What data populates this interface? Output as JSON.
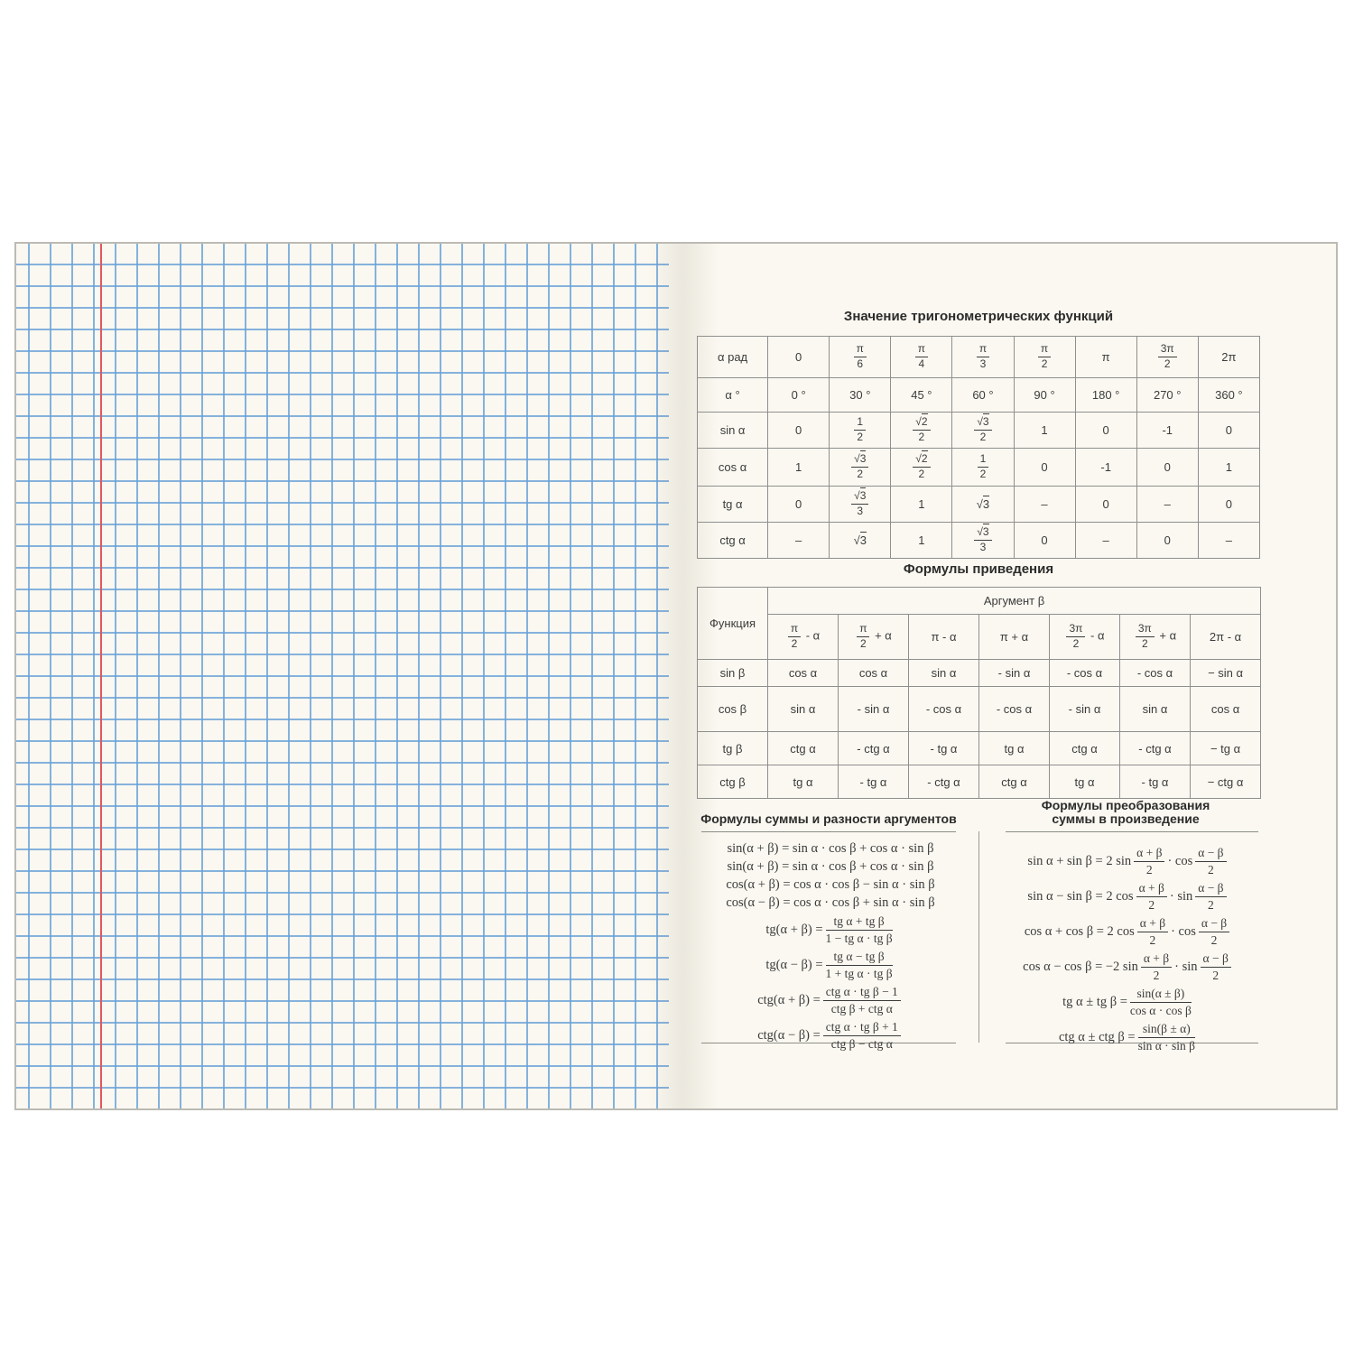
{
  "colors": {
    "paper": "#faf8f0",
    "grid_blue": "#68a0d8",
    "margin_red": "#e05760",
    "table_border": "#8f8f8f",
    "text": "#3a3a3a"
  },
  "table1": {
    "title": "Значение тригонометрических функций",
    "rows": [
      [
        "α рад",
        "0",
        {
          "n": "π",
          "d": "6"
        },
        {
          "n": "π",
          "d": "4"
        },
        {
          "n": "π",
          "d": "3"
        },
        {
          "n": "π",
          "d": "2"
        },
        "π",
        {
          "n": "3π",
          "d": "2"
        },
        "2π"
      ],
      [
        "α °",
        "0 °",
        "30 °",
        "45 °",
        "60 °",
        "90 °",
        "180 °",
        "270 °",
        "360 °"
      ],
      [
        "sin α",
        "0",
        {
          "n": "1",
          "d": "2"
        },
        {
          "n": "√{2}",
          "d": "2"
        },
        {
          "n": "√{3}",
          "d": "2"
        },
        "1",
        "0",
        "-1",
        "0"
      ],
      [
        "cos α",
        "1",
        {
          "n": "√{3}",
          "d": "2"
        },
        {
          "n": "√{2}",
          "d": "2"
        },
        {
          "n": "1",
          "d": "2"
        },
        "0",
        "-1",
        "0",
        "1"
      ],
      [
        "tg α",
        "0",
        {
          "n": "√{3}",
          "d": "3"
        },
        "1",
        "√{3}",
        "–",
        "0",
        "–",
        "0"
      ],
      [
        "ctg α",
        "–",
        "√{3}",
        "1",
        {
          "n": "√{3}",
          "d": "3"
        },
        "0",
        "–",
        "0",
        "–"
      ]
    ]
  },
  "table2": {
    "title": "Формулы приведения",
    "func_label": "Функция",
    "arg_label": "Аргумент β",
    "arg_headers": [
      [
        {
          "n": "π",
          "d": "2"
        },
        " - α"
      ],
      [
        {
          "n": "π",
          "d": "2"
        },
        " + α"
      ],
      "π - α",
      "π + α",
      [
        {
          "n": "3π",
          "d": "2"
        },
        " - α"
      ],
      [
        {
          "n": "3π",
          "d": "2"
        },
        " + α"
      ],
      "2π - α"
    ],
    "rows": [
      [
        "sin β",
        "cos α",
        "cos α",
        "sin α",
        "- sin α",
        "- cos α",
        "- cos α",
        "− sin α"
      ],
      [
        "cos β",
        "sin α",
        "- sin α",
        "- cos α",
        "- cos α",
        "- sin α",
        "sin α",
        "cos α"
      ],
      [
        "tg β",
        "ctg α",
        "- ctg α",
        "- tg α",
        "tg α",
        "ctg α",
        "- ctg α",
        "− tg α"
      ],
      [
        "ctg β",
        "tg α",
        "- tg α",
        "- ctg α",
        "ctg α",
        "tg α",
        "- tg α",
        "− ctg α"
      ]
    ]
  },
  "sum_section": {
    "title": "Формулы суммы и разности аргументов",
    "formulas": [
      [
        "sin(α + β) = sin α · cos β + cos α · sin β"
      ],
      [
        "sin(α + β) = sin α · cos β + cos α · sin β"
      ],
      [
        "cos(α + β) = cos α · cos β − sin α · sin β"
      ],
      [
        "cos(α − β) = cos α · cos β + sin α · sin β"
      ],
      [
        "tg(α + β) = ",
        {
          "n": "tg α + tg β",
          "d": "1 − tg α · tg β"
        }
      ],
      [
        "tg(α − β) = ",
        {
          "n": "tg α − tg β",
          "d": "1 + tg α · tg β"
        }
      ],
      [
        "ctg(α + β) = ",
        {
          "n": "ctg α · tg β − 1",
          "d": "ctg β + ctg α"
        }
      ],
      [
        "ctg(α − β) = ",
        {
          "n": "ctg α · tg β + 1",
          "d": "ctg β − ctg α"
        }
      ]
    ]
  },
  "prod_section": {
    "title_line1": "Формулы преобразования",
    "title_line2": "суммы в произведение",
    "formulas": [
      [
        "sin α + sin β = 2 sin ",
        {
          "n": "α + β",
          "d": "2"
        },
        " · cos ",
        {
          "n": "α − β",
          "d": "2"
        }
      ],
      [
        "sin α − sin β = 2 cos ",
        {
          "n": "α + β",
          "d": "2"
        },
        " · sin ",
        {
          "n": "α − β",
          "d": "2"
        }
      ],
      [
        "cos α + cos β = 2 cos ",
        {
          "n": "α + β",
          "d": "2"
        },
        " · cos ",
        {
          "n": "α − β",
          "d": "2"
        }
      ],
      [
        "cos α − cos β = −2 sin ",
        {
          "n": "α + β",
          "d": "2"
        },
        " · sin ",
        {
          "n": "α − β",
          "d": "2"
        }
      ],
      [
        "tg α ± tg β = ",
        {
          "n": "sin(α ± β)",
          "d": "cos α · cos β"
        }
      ],
      [
        "ctg α ± ctg β = ",
        {
          "n": "sin(β ± α)",
          "d": "sin α · sin β"
        }
      ]
    ]
  }
}
